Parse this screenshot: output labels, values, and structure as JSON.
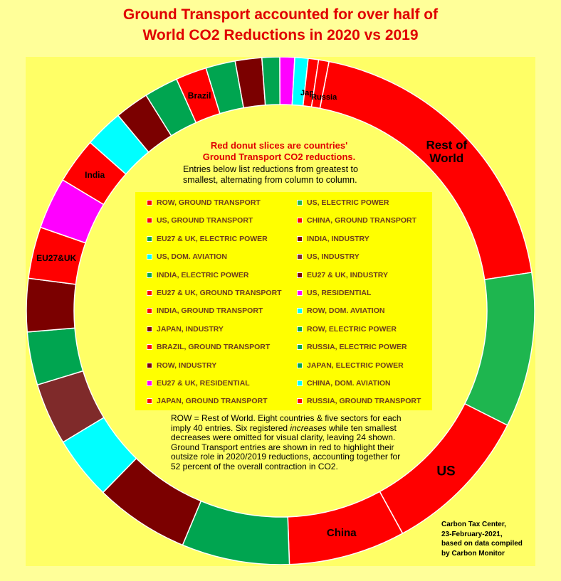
{
  "title_line1": "Ground Transport accounted for over half of",
  "title_line2": "World CO2 Reductions in 2020 vs 2019",
  "note_red_line1": "Red donut slices are countries'",
  "note_red_line2": "Ground Transport CO2 reductions.",
  "note_blk_line1": "Entries below list reductions from greatest to",
  "note_blk_line2": "smallest, alternating from column to column.",
  "rowdef_before": "ROW = Rest of World. Eight countries & five sectors for each imply 40 entries. Six registered ",
  "rowdef_italic": "increases",
  "rowdef_after": " while ten smallest decreases were omitted for visual clarity, leaving 24 shown. Ground Transport entries are shown in red to highlight their outsize role in 2020/2019 reductions, accounting together for 52 percent of the overall contraction in CO2.",
  "credit": [
    "Carbon Tax Center,",
    "23-February-2021,",
    "based on data compiled",
    "by Carbon Monitor"
  ],
  "colors": {
    "ground_transport": "#ff0000",
    "electric_power": "#1eb64f",
    "industry": "#7b0000",
    "aviation": "#00ffff",
    "residential": "#ff00ff",
    "row_industry": "#7f2a2a"
  },
  "chart_data": {
    "type": "pie",
    "subtype": "donut",
    "title": "Ground Transport accounted for over half of World CO2 Reductions in 2020 vs 2019",
    "start_angle_deg": 11,
    "direction": "clockwise",
    "slices": [
      {
        "label": "ROW, Ground Transport",
        "short": "ROW, GROUND TRANSPORT",
        "value": 20.8,
        "color": "#ff0000",
        "slice_label": "Rest of\nWorld"
      },
      {
        "label": "US, Electric Power",
        "short": "US, ELECTRIC POWER",
        "value": 10.5,
        "color": "#1eb64f",
        "slice_label": ""
      },
      {
        "label": "US, Ground Transport",
        "short": "US, GROUND TRANSPORT",
        "value": 10.2,
        "color": "#ff0000",
        "slice_label": "US"
      },
      {
        "label": "China, Ground Transport",
        "short": "CHINA, GROUND TRANSPORT",
        "value": 7.9,
        "color": "#ff0000",
        "slice_label": "China"
      },
      {
        "label": "EU27 & UK, Electric Power",
        "short": "EU27 & UK, ELECTRIC POWER",
        "value": 7.3,
        "color": "#00a550",
        "slice_label": ""
      },
      {
        "label": "India, Industry",
        "short": "INDIA, INDUSTRY",
        "value": 6.4,
        "color": "#7b0000",
        "slice_label": ""
      },
      {
        "label": "US, Dom. Aviation",
        "short": "US, DOM. AVIATION",
        "value": 4.3,
        "color": "#00ffff",
        "slice_label": ""
      },
      {
        "label": "US, Industry",
        "short": "US, INDUSTRY",
        "value": 4.2,
        "color": "#7f2a2a",
        "slice_label": ""
      },
      {
        "label": "India, Electric Power",
        "short": "INDIA, ELECTRIC POWER",
        "value": 3.6,
        "color": "#00a550",
        "slice_label": ""
      },
      {
        "label": "EU27 & UK, Industry",
        "short": "EU27 & UK, INDUSTRY",
        "value": 3.6,
        "color": "#7b0000",
        "slice_label": ""
      },
      {
        "label": "EU27 & UK, Ground Transport",
        "short": "EU27 & UK, GROUND TRANSPORT",
        "value": 3.5,
        "color": "#ff0000",
        "slice_label": "EU27&UK"
      },
      {
        "label": "US, Residential",
        "short": "US, RESIDENTIAL",
        "value": 3.5,
        "color": "#ff00ff",
        "slice_label": ""
      },
      {
        "label": "India, Ground Transport",
        "short": "INDIA, GROUND TRANSPORT",
        "value": 3.1,
        "color": "#ff0000",
        "slice_label": "India"
      },
      {
        "label": "ROW, Dom. Aviation",
        "short": "ROW, DOM. AVIATION",
        "value": 2.6,
        "color": "#00ffff",
        "slice_label": ""
      },
      {
        "label": "Japan, Industry",
        "short": "JAPAN, INDUSTRY",
        "value": 2.3,
        "color": "#7b0000",
        "slice_label": ""
      },
      {
        "label": "ROW, Electric Power",
        "short": "ROW, ELECTRIC POWER",
        "value": 2.3,
        "color": "#00a550",
        "slice_label": ""
      },
      {
        "label": "Brazil, Ground Transport",
        "short": "BRAZIL, GROUND TRANSPORT",
        "value": 2.1,
        "color": "#ff0000",
        "slice_label": "Brazil"
      },
      {
        "label": "Russia, Electric Power",
        "short": "RUSSIA, ELECTRIC POWER",
        "value": 2.0,
        "color": "#00a550",
        "slice_label": ""
      },
      {
        "label": "ROW, Industry",
        "short": "ROW, INDUSTRY",
        "value": 1.8,
        "color": "#7b0000",
        "slice_label": ""
      },
      {
        "label": "Japan, Electric Power",
        "short": "JAPAN, ELECTRIC POWER",
        "value": 1.2,
        "color": "#00a550",
        "slice_label": ""
      },
      {
        "label": "EU27 & UK, Residential",
        "short": "EU27 & UK, RESIDENTIAL",
        "value": 1.0,
        "color": "#ff00ff",
        "slice_label": ""
      },
      {
        "label": "China, Dom. Aviation",
        "short": "CHINA, DOM. AVIATION",
        "value": 0.9,
        "color": "#00ffff",
        "slice_label": ""
      },
      {
        "label": "Japan, Ground Transport",
        "short": "JAPAN, GROUND TRANSPORT",
        "value": 0.7,
        "color": "#ff0000",
        "slice_label": "Japan"
      },
      {
        "label": "Russia, Ground Transport",
        "short": "RUSSIA, GROUND TRANSPORT",
        "value": 0.7,
        "color": "#ff0000",
        "slice_label": "Russia"
      }
    ]
  }
}
